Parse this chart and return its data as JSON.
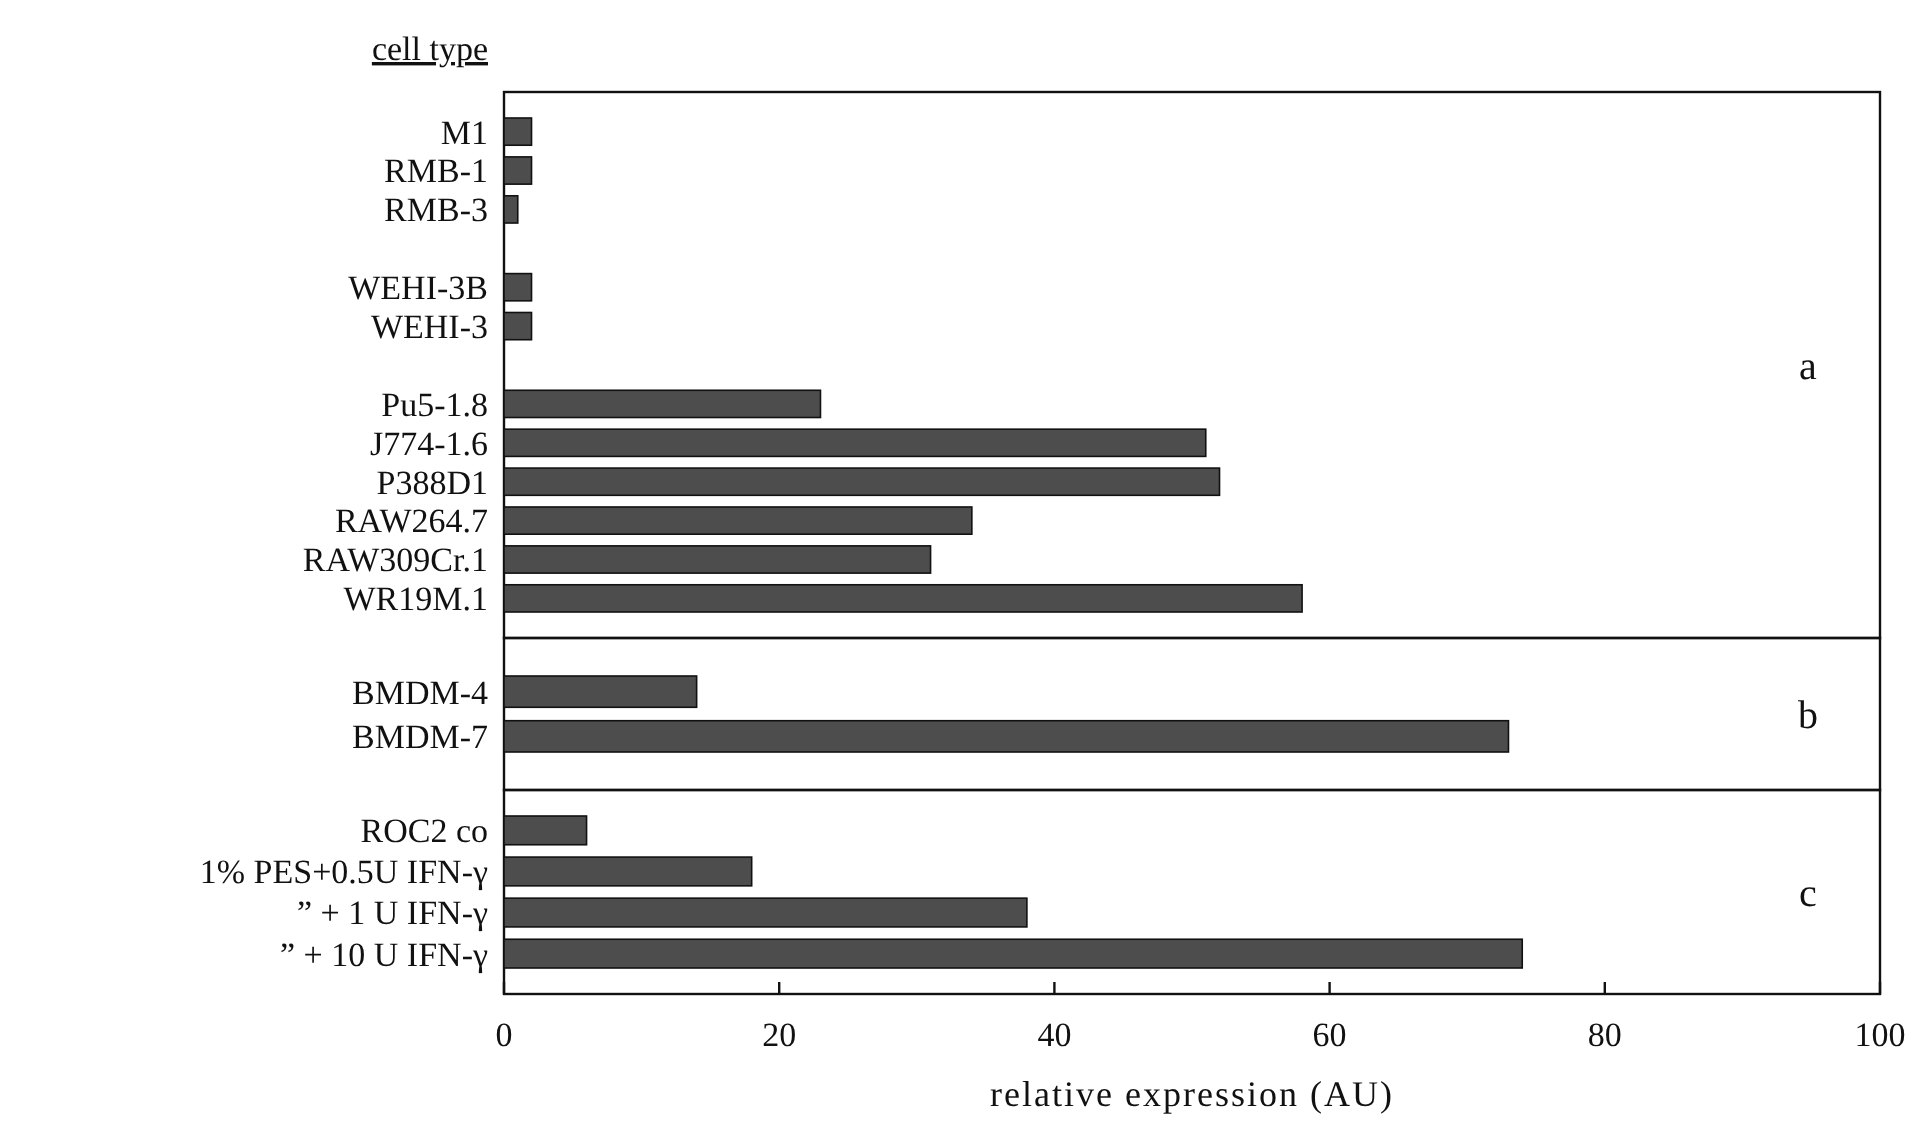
{
  "chart_data": [
    {
      "type": "bar",
      "orientation": "horizontal",
      "ylabel": "cell type",
      "annotations": [
        "a"
      ],
      "tick_labels": "y",
      "xlim": [
        0,
        100
      ],
      "color": "#4d4d4d",
      "categories": [
        "M1",
        "RMB-1",
        "RMB-3",
        null,
        "WEHI-3B",
        "WEHI-3",
        null,
        "Pu5-1.8",
        "J774-1.6",
        "P388D1",
        "RAW264.7",
        "RAW309Cr.1",
        "WR19M.1"
      ],
      "values": [
        2,
        2,
        1,
        null,
        2,
        2,
        null,
        23,
        51,
        52,
        34,
        31,
        58
      ]
    },
    {
      "type": "bar",
      "orientation": "horizontal",
      "annotations": [
        "b"
      ],
      "tick_labels": "y",
      "xlim": [
        0,
        100
      ],
      "color": "#4d4d4d",
      "categories": [
        "BMDM-4",
        "BMDM-7"
      ],
      "values": [
        14,
        73
      ]
    },
    {
      "type": "bar",
      "orientation": "horizontal",
      "annotations": [
        "c"
      ],
      "xlabel": "relative expression (AU)",
      "xlim": [
        0,
        100
      ],
      "xticks": [
        0,
        20,
        40,
        60,
        80,
        100
      ],
      "color": "#4d4d4d",
      "categories": [
        "ROC2 co",
        "1% PES+0.5U IFN-γ",
        "” + 1 U IFN-γ",
        "” + 10 U IFN-γ"
      ],
      "values": [
        6,
        18,
        38,
        74
      ]
    }
  ]
}
